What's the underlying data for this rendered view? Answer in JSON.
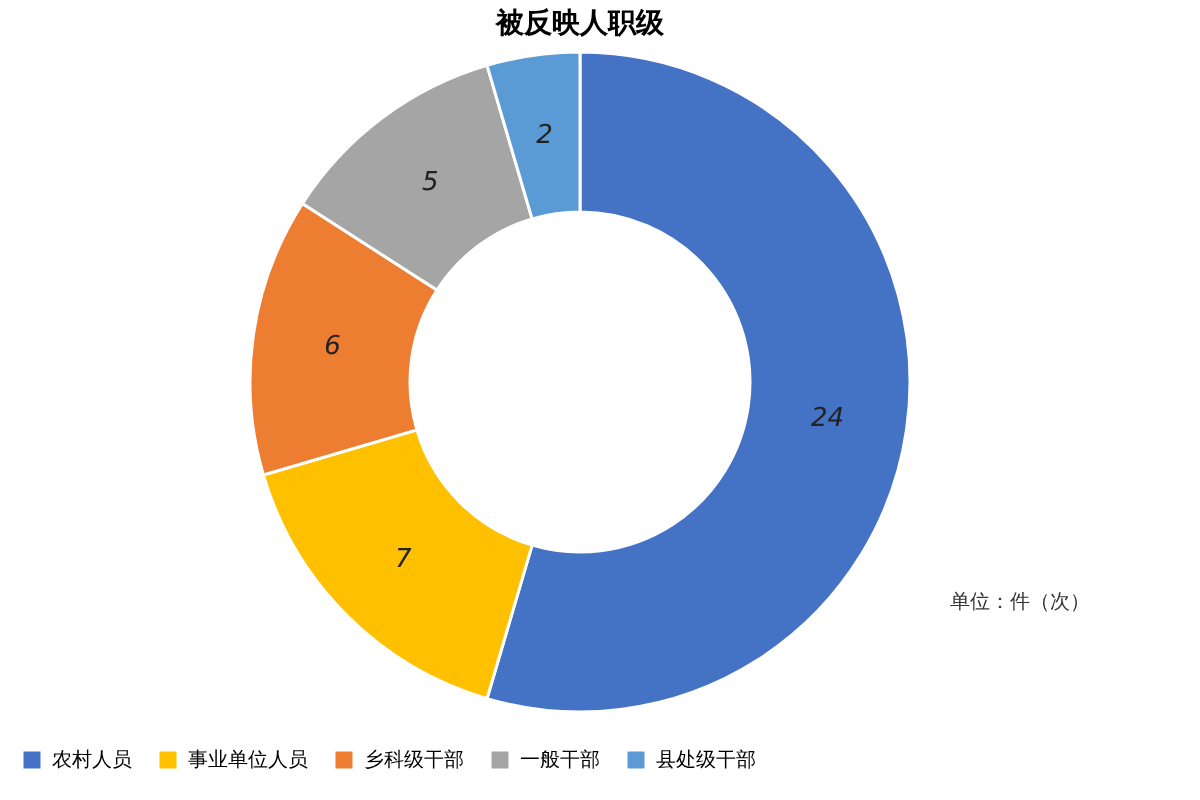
{
  "chart_data": {
    "type": "donut",
    "title": "被反映人职级",
    "categories": [
      "农村人员",
      "事业单位人员",
      "乡科级干部",
      "一般干部",
      "县处级干部"
    ],
    "values": [
      24,
      7,
      6,
      5,
      2
    ],
    "colors": [
      "#4472c4",
      "#ffc000",
      "#ed7d31",
      "#a5a5a5",
      "#5b9bd5"
    ],
    "data_labels": true,
    "legend": "bottom",
    "annotations": [
      "单位：件（次）"
    ]
  }
}
